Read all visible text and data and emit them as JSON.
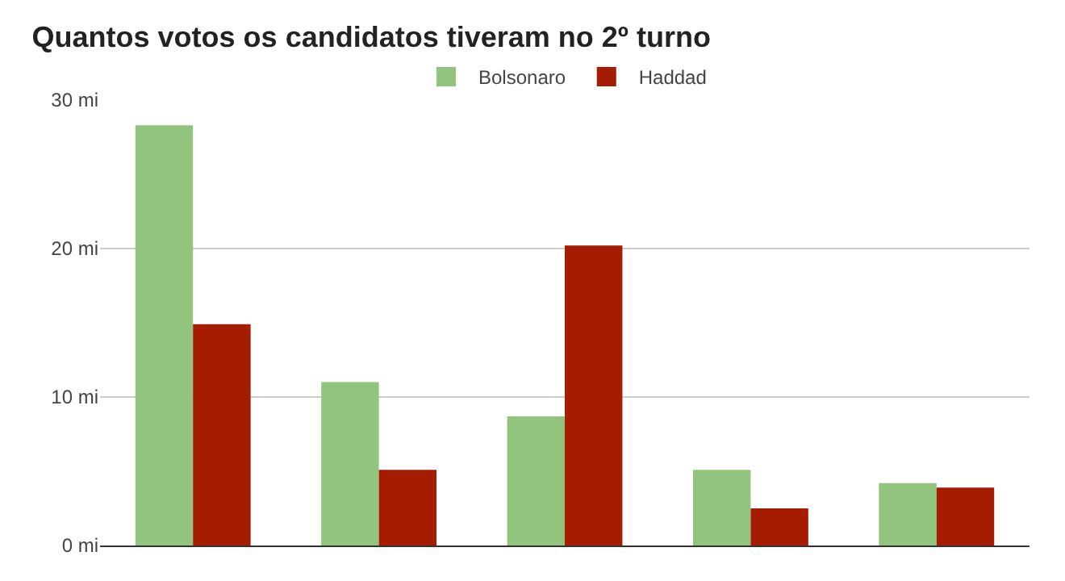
{
  "chart_data": {
    "type": "bar",
    "title": "Quantos votos os candidatos tiveram no 2º turno",
    "categories": [
      null,
      null,
      null,
      null,
      null
    ],
    "series": [
      {
        "name": "Bolsonaro",
        "color": "#93c47d",
        "values": [
          28.3,
          11.0,
          8.7,
          5.1,
          4.2
        ]
      },
      {
        "name": "Haddad",
        "color": "#a61c00",
        "values": [
          14.9,
          5.1,
          20.2,
          2.5,
          3.9
        ]
      }
    ],
    "ylim": [
      0,
      30
    ],
    "yticks": [
      {
        "value": 0,
        "label": "0 mi"
      },
      {
        "value": 10,
        "label": "10 mi"
      },
      {
        "value": 20,
        "label": "20 mi"
      },
      {
        "value": 30,
        "label": "30 mi"
      }
    ],
    "grid": "y",
    "legend": "top"
  }
}
